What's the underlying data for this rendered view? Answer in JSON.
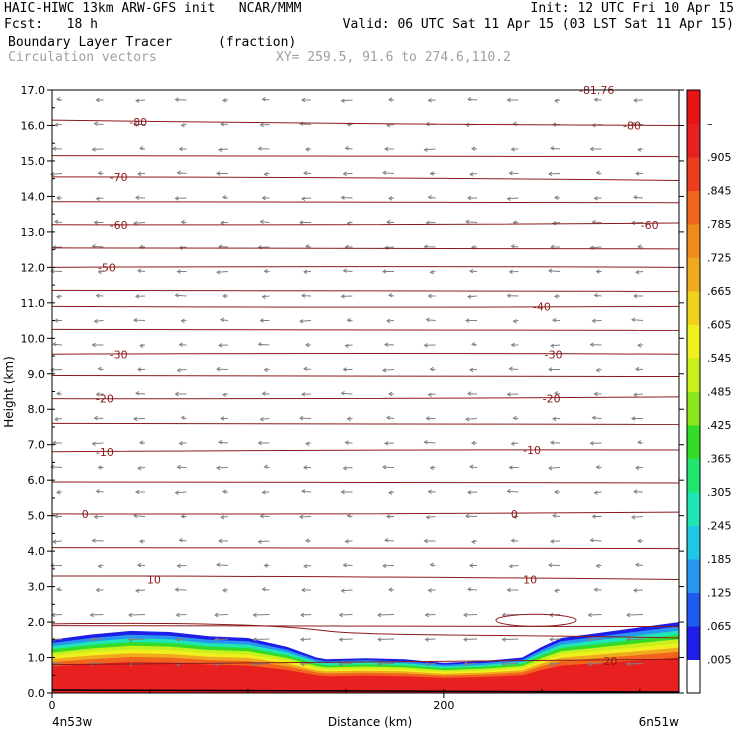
{
  "header": {
    "title_left": "HAIC-HIWC 13km ARW-GFS init   NCAR/MMM",
    "init": "Init: 12 UTC Fri 10 Apr 15",
    "fcst": "Fcst:   18 h",
    "valid": "Valid: 06 UTC Sat 11 Apr 15 (03 LST Sat 11 Apr 15)",
    "field": "Boundary Layer Tracer",
    "field_units": "(fraction)",
    "vectors": "Circulation vectors",
    "xy": "XY= 259.5, 91.6 to 274.6,110.2"
  },
  "colors": {
    "contour": "#8b1a1a",
    "vector": "#808080",
    "palette": [
      "#ffffff",
      "#1e1ee8",
      "#1e5af0",
      "#2896f0",
      "#1ec8e6",
      "#1ee6b4",
      "#1ee66e",
      "#32dc28",
      "#8ce61e",
      "#c8f01e",
      "#f0f01e",
      "#f0d21e",
      "#f0aa1e",
      "#f08c1e",
      "#f0641e",
      "#ec3c1e",
      "#e82020",
      "#e61414"
    ]
  },
  "chart_data": {
    "type": "heatmap",
    "xlabel": "Distance (km)",
    "ylabel": "Height (km)",
    "xlim": [
      0,
      320
    ],
    "ylim": [
      0,
      17
    ],
    "x_ticks": [
      0,
      200
    ],
    "x_tick_labels": [
      "0",
      "200"
    ],
    "x_endpoint_labels": [
      "4n53w",
      "6n51w"
    ],
    "y_ticks": [
      0,
      1,
      2,
      3,
      4,
      5,
      6,
      7,
      8,
      9,
      10,
      11,
      12,
      13,
      14,
      15,
      16,
      17
    ],
    "y_tick_labels": [
      "0.0",
      "1.0",
      "2.0",
      "3.0",
      "4.0",
      "5.0",
      "6.0",
      "7.0",
      "8.0",
      "9.0",
      "10.0",
      "11.0",
      "12.0",
      "13.0",
      "14.0",
      "15.0",
      "16.0",
      "17.0"
    ],
    "colorbar_labels": [
      ".005",
      ".065",
      ".125",
      ".185",
      ".245",
      ".305",
      ".365",
      ".425",
      ".485",
      ".545",
      ".605",
      ".665",
      ".725",
      ".785",
      ".845",
      ".905",
      "–"
    ],
    "tracer_top_km": {
      "x": [
        0,
        20,
        40,
        60,
        80,
        100,
        120,
        135,
        140,
        160,
        180,
        190,
        200,
        220,
        240,
        250,
        260,
        280,
        300,
        320
      ],
      "top": [
        1.5,
        1.65,
        1.75,
        1.72,
        1.6,
        1.55,
        1.3,
        1.0,
        0.95,
        0.98,
        0.95,
        0.9,
        0.85,
        0.9,
        1.0,
        1.3,
        1.55,
        1.7,
        1.85,
        2.0
      ]
    },
    "contours": [
      {
        "label": "10",
        "y0": 3.3,
        "y1": 3.2
      },
      {
        "label": "0",
        "y0": 5.05,
        "y1": 5.1
      },
      {
        "label": "-10",
        "y0": 6.8,
        "y1": 6.85
      },
      {
        "label": "-20",
        "y0": 8.3,
        "y1": 8.35
      },
      {
        "label": "-30",
        "y0": 9.55,
        "y1": 9.55
      },
      {
        "label": "-40",
        "y0": 10.9,
        "y1": 10.9
      },
      {
        "label": "-50",
        "y0": 12.0,
        "y1": 12.0
      },
      {
        "label": "-60",
        "y0": 13.2,
        "y1": 13.25
      },
      {
        "label": "-70",
        "y0": 14.55,
        "y1": 14.45
      },
      {
        "label": "-80",
        "y0": 16.15,
        "y1": 16.0
      }
    ],
    "contour_labels": [
      {
        "text": "20",
        "x": 285,
        "y": 0.9
      },
      {
        "text": "10",
        "x": 52,
        "y": 3.2
      },
      {
        "text": "10",
        "x": 244,
        "y": 3.2
      },
      {
        "text": "0",
        "x": 17,
        "y": 5.05
      },
      {
        "text": "0",
        "x": 236,
        "y": 5.05
      },
      {
        "text": "-10",
        "x": 27,
        "y": 6.8
      },
      {
        "text": "-10",
        "x": 245,
        "y": 6.85
      },
      {
        "text": "-20",
        "x": 27,
        "y": 8.3
      },
      {
        "text": "-20",
        "x": 255,
        "y": 8.3
      },
      {
        "text": "-30",
        "x": 34,
        "y": 9.55
      },
      {
        "text": "-30",
        "x": 256,
        "y": 9.55
      },
      {
        "text": "-40",
        "x": 250,
        "y": 10.9
      },
      {
        "text": "-50",
        "x": 28,
        "y": 12.0
      },
      {
        "text": "-60",
        "x": 34,
        "y": 13.2
      },
      {
        "text": "-60",
        "x": 305,
        "y": 13.2
      },
      {
        "text": "-70",
        "x": 34,
        "y": 14.55
      },
      {
        "text": "-80",
        "x": 44,
        "y": 16.1
      },
      {
        "text": "-80",
        "x": 296,
        "y": 16.0
      },
      {
        "text": "-81.76",
        "x": 278,
        "y": 17.0
      }
    ]
  }
}
